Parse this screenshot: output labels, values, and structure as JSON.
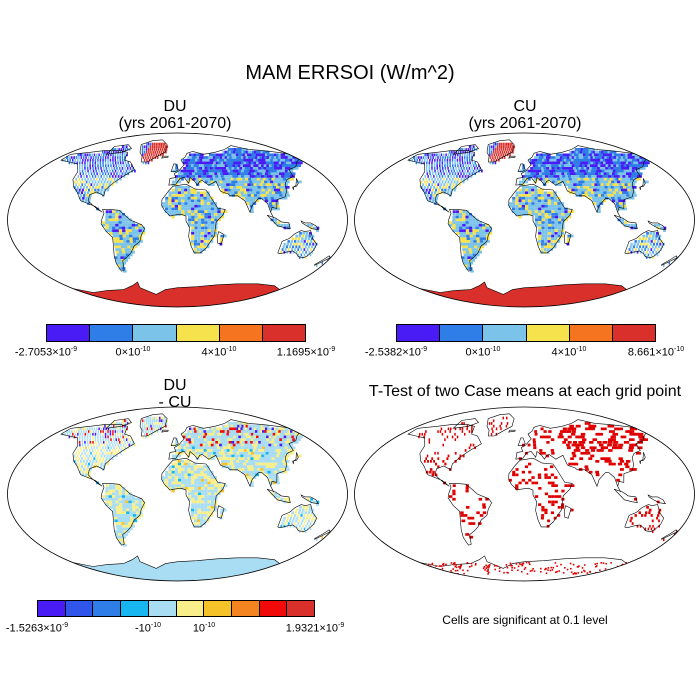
{
  "title": "MAM ERRSOI (W/m^2)",
  "panels": {
    "du": {
      "title_line1": "DU",
      "title_line2": "(yrs 2061-2070)",
      "legend": {
        "colors": [
          "#4a1cf5",
          "#2f7de6",
          "#7cc3ea",
          "#f6e24c",
          "#f4741f",
          "#d9302b"
        ],
        "labels": [
          {
            "mant": "-2.7053",
            "exp": "-9"
          },
          {
            "mant": "0",
            "exp": "-10"
          },
          {
            "mant": "4",
            "exp": "-10"
          },
          {
            "mant": "1.1695",
            "exp": "-9"
          }
        ]
      }
    },
    "cu": {
      "title_line1": "CU",
      "title_line2": "(yrs 2061-2070)",
      "legend": {
        "colors": [
          "#4a1cf5",
          "#2f7de6",
          "#7cc3ea",
          "#f6e24c",
          "#f4741f",
          "#d9302b"
        ],
        "labels": [
          {
            "mant": "-2.5382",
            "exp": "-9"
          },
          {
            "mant": "0",
            "exp": "-10"
          },
          {
            "mant": "4",
            "exp": "-10"
          },
          {
            "mant": "8.661",
            "exp": "-10"
          }
        ]
      }
    },
    "diff": {
      "title_line1": "DU",
      "title_line2": "- CU",
      "legend": {
        "colors": [
          "#4a1cf5",
          "#2f55ea",
          "#2f7de6",
          "#17b6f0",
          "#a9ddf4",
          "#f9ef8a",
          "#f6c22a",
          "#f4841f",
          "#f00a0a",
          "#d9302b"
        ],
        "labels": [
          {
            "mant": "-1.5263",
            "exp": "-9"
          },
          {
            "mant": "-10",
            "exp": "-10",
            "plain": true
          },
          {
            "mant": "10",
            "exp": "-10",
            "plain": true
          },
          {
            "mant": "1.9321",
            "exp": "-9"
          }
        ]
      }
    },
    "ttest": {
      "title": "T-Test of two Case means at each grid point",
      "note": "Cells are significant at 0.1 level"
    }
  },
  "colors": {
    "ocean": "#ffffff",
    "coast": "#000000",
    "antarctica": "#d9302b",
    "land_base": "#6fb1e4",
    "diff_land": "#cfe6c8",
    "significant": "#e00000"
  }
}
